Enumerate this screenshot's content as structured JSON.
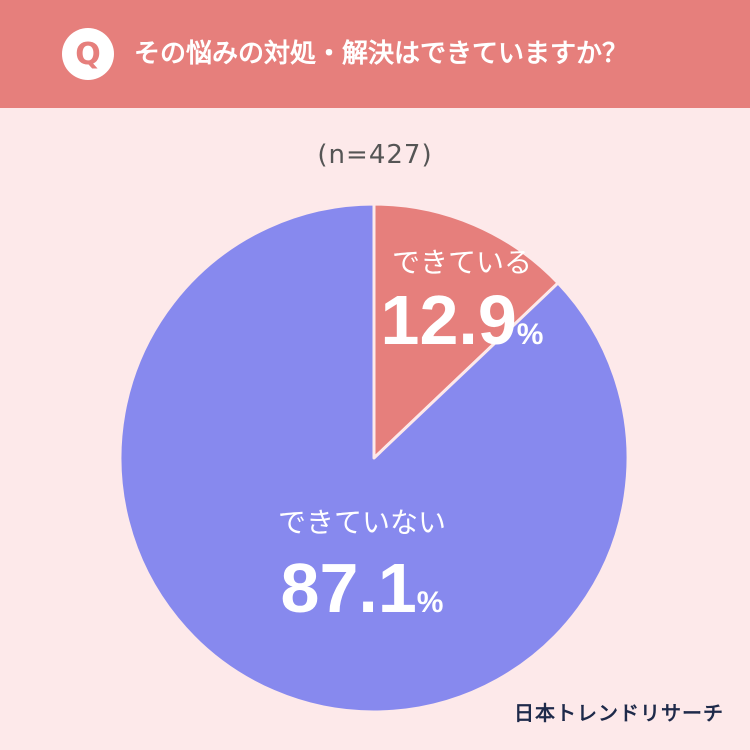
{
  "header": {
    "badge": "Q",
    "question": "その悩みの対処・解決はできていますか？"
  },
  "sample_size": "(n=427)",
  "brand": "日本トレンドリサーチ",
  "colors": {
    "header_bg": "#e67f7c",
    "page_bg": "#fde9ea",
    "slice_done": "#e67f7c",
    "slice_not_done": "#8789ee",
    "text_light": "#ffffff"
  },
  "chart_data": {
    "type": "pie",
    "categories": [
      "できている",
      "できていない"
    ],
    "values": [
      12.9,
      87.1
    ],
    "unit": "%"
  }
}
